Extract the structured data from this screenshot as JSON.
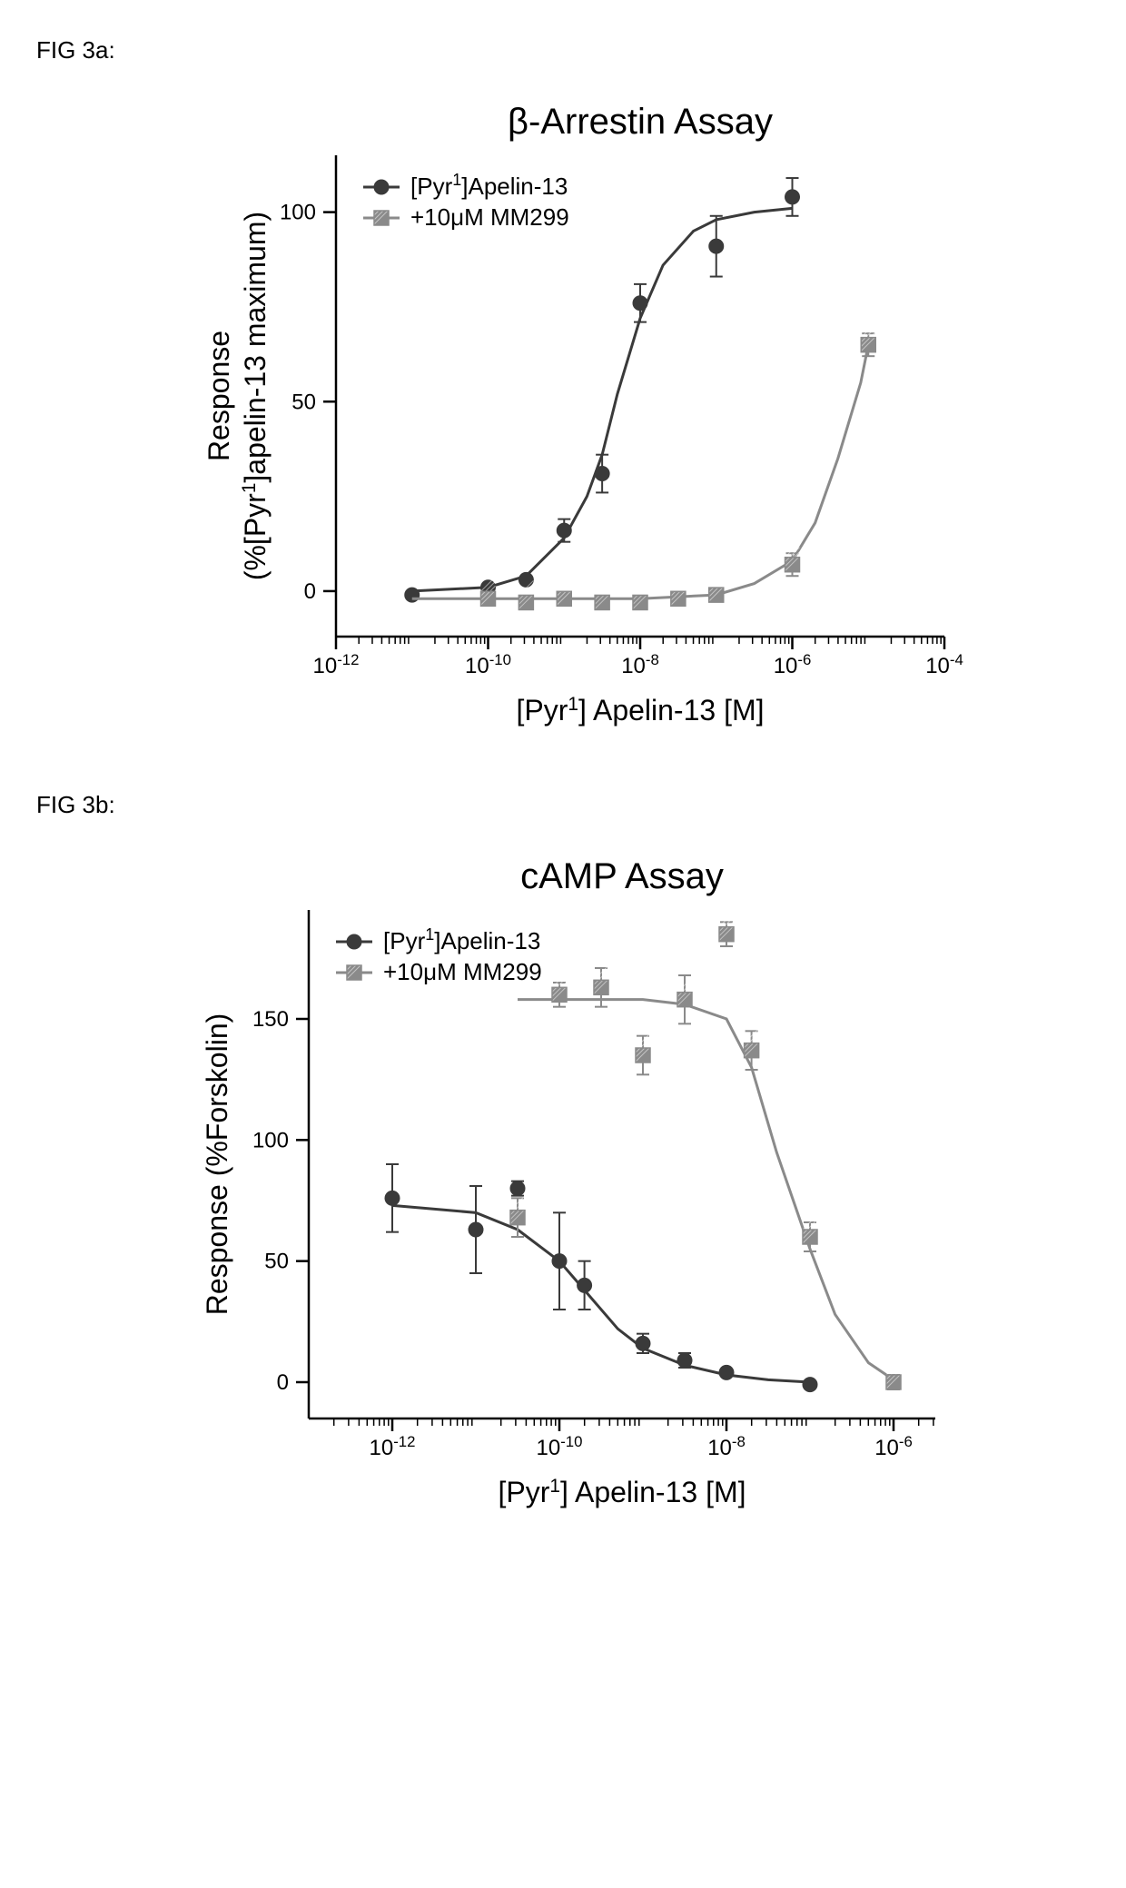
{
  "figA": {
    "label": "FIG 3a:",
    "title": "β-Arrestin  Assay",
    "title_fontsize": 40,
    "xlabel_pre": "[Pyr",
    "xlabel_sup": "1",
    "xlabel_post": "] Apelin-13 [M]",
    "ylabel_line1": "Response",
    "ylabel_line2_pre": "(%[Pyr",
    "ylabel_line2_sup": "1",
    "ylabel_line2_post": "]apelin-13 maximum)",
    "label_fontsize": 32,
    "tick_fontsize": 24,
    "axis_color": "#000000",
    "background_color": "#ffffff",
    "line_width": 3,
    "marker_size": 8,
    "x_log_ticks": [
      -12,
      -10,
      -8,
      -6,
      -4
    ],
    "x_log_tick_labels": [
      "10^-12",
      "10^-10",
      "10^-8",
      "10^-6",
      "10^-4"
    ],
    "xlim_log": [
      -12,
      -4
    ],
    "y_ticks": [
      0,
      50,
      100
    ],
    "ylim": [
      -12,
      115
    ],
    "series": [
      {
        "name": "apelin13",
        "legend_pre": "[Pyr",
        "legend_sup": "1",
        "legend_post": "]Apelin-13",
        "color": "#3a3a3a",
        "marker": "circle",
        "marker_fill": "#3a3a3a",
        "points": [
          {
            "logx": -11,
            "y": -1,
            "err": 0
          },
          {
            "logx": -10,
            "y": 1,
            "err": 0
          },
          {
            "logx": -9.5,
            "y": 3,
            "err": 0
          },
          {
            "logx": -9,
            "y": 16,
            "err": 3
          },
          {
            "logx": -8.5,
            "y": 31,
            "err": 5
          },
          {
            "logx": -8,
            "y": 76,
            "err": 5
          },
          {
            "logx": -7,
            "y": 91,
            "err": 8
          },
          {
            "logx": -6,
            "y": 104,
            "err": 5
          }
        ],
        "curve": [
          {
            "logx": -11,
            "y": 0
          },
          {
            "logx": -10,
            "y": 1
          },
          {
            "logx": -9.5,
            "y": 4
          },
          {
            "logx": -9,
            "y": 14
          },
          {
            "logx": -8.7,
            "y": 25
          },
          {
            "logx": -8.5,
            "y": 36
          },
          {
            "logx": -8.3,
            "y": 52
          },
          {
            "logx": -8,
            "y": 72
          },
          {
            "logx": -7.7,
            "y": 86
          },
          {
            "logx": -7.3,
            "y": 95
          },
          {
            "logx": -7,
            "y": 98
          },
          {
            "logx": -6.5,
            "y": 100
          },
          {
            "logx": -6,
            "y": 101
          }
        ]
      },
      {
        "name": "mm299",
        "legend_pre": "+10μM MM299",
        "legend_sup": "",
        "legend_post": "",
        "color": "#8a8a8a",
        "marker": "square-hatched",
        "marker_fill": "#8a8a8a",
        "points": [
          {
            "logx": -10,
            "y": -2,
            "err": 0
          },
          {
            "logx": -9.5,
            "y": -3,
            "err": 0
          },
          {
            "logx": -9,
            "y": -2,
            "err": 0
          },
          {
            "logx": -8.5,
            "y": -3,
            "err": 0
          },
          {
            "logx": -8,
            "y": -3,
            "err": 0
          },
          {
            "logx": -7.5,
            "y": -2,
            "err": 0
          },
          {
            "logx": -7,
            "y": -1,
            "err": 0
          },
          {
            "logx": -6,
            "y": 7,
            "err": 3
          },
          {
            "logx": -5,
            "y": 65,
            "err": 3
          }
        ],
        "curve": [
          {
            "logx": -11,
            "y": -2
          },
          {
            "logx": -8,
            "y": -2
          },
          {
            "logx": -7,
            "y": -1
          },
          {
            "logx": -6.5,
            "y": 2
          },
          {
            "logx": -6,
            "y": 8
          },
          {
            "logx": -5.7,
            "y": 18
          },
          {
            "logx": -5.4,
            "y": 35
          },
          {
            "logx": -5.1,
            "y": 55
          },
          {
            "logx": -5,
            "y": 65
          }
        ]
      }
    ]
  },
  "figB": {
    "label": "FIG 3b:",
    "title": "cAMP Assay",
    "title_fontsize": 40,
    "xlabel_pre": "[Pyr",
    "xlabel_sup": "1",
    "xlabel_post": "] Apelin-13 [M]",
    "ylabel_line1": "Response (%Forskolin)",
    "label_fontsize": 32,
    "tick_fontsize": 24,
    "axis_color": "#000000",
    "background_color": "#ffffff",
    "line_width": 3,
    "marker_size": 8,
    "x_log_ticks": [
      -12,
      -10,
      -8,
      -6
    ],
    "x_log_tick_labels": [
      "10^-12",
      "10^-10",
      "10^-8",
      "10^-6"
    ],
    "xlim_log": [
      -13,
      -5.5
    ],
    "y_ticks": [
      0,
      50,
      100,
      150
    ],
    "ylim": [
      -15,
      195
    ],
    "series": [
      {
        "name": "apelin13",
        "legend_pre": "[Pyr",
        "legend_sup": "1",
        "legend_post": "]Apelin-13",
        "color": "#3a3a3a",
        "marker": "circle",
        "marker_fill": "#3a3a3a",
        "points": [
          {
            "logx": -12,
            "y": 76,
            "err": 14
          },
          {
            "logx": -11,
            "y": 63,
            "err": 18
          },
          {
            "logx": -10.5,
            "y": 80,
            "err": 3
          },
          {
            "logx": -10,
            "y": 50,
            "err": 20
          },
          {
            "logx": -9.7,
            "y": 40,
            "err": 10
          },
          {
            "logx": -9,
            "y": 16,
            "err": 4
          },
          {
            "logx": -8.5,
            "y": 9,
            "err": 3
          },
          {
            "logx": -8,
            "y": 4,
            "err": 0
          },
          {
            "logx": -7,
            "y": -1,
            "err": 0
          }
        ],
        "curve": [
          {
            "logx": -12,
            "y": 73
          },
          {
            "logx": -11,
            "y": 70
          },
          {
            "logx": -10.5,
            "y": 63
          },
          {
            "logx": -10,
            "y": 50
          },
          {
            "logx": -9.7,
            "y": 38
          },
          {
            "logx": -9.3,
            "y": 22
          },
          {
            "logx": -9,
            "y": 14
          },
          {
            "logx": -8.5,
            "y": 7
          },
          {
            "logx": -8,
            "y": 3
          },
          {
            "logx": -7.5,
            "y": 1
          },
          {
            "logx": -7,
            "y": 0
          }
        ]
      },
      {
        "name": "mm299",
        "legend_pre": "+10μM MM299",
        "legend_sup": "",
        "legend_post": "",
        "color": "#8a8a8a",
        "marker": "square-hatched",
        "marker_fill": "#8a8a8a",
        "points": [
          {
            "logx": -10.5,
            "y": 68,
            "err": 8
          },
          {
            "logx": -10,
            "y": 160,
            "err": 5
          },
          {
            "logx": -9.5,
            "y": 163,
            "err": 8
          },
          {
            "logx": -9,
            "y": 135,
            "err": 8
          },
          {
            "logx": -8.5,
            "y": 158,
            "err": 10
          },
          {
            "logx": -8,
            "y": 185,
            "err": 5
          },
          {
            "logx": -7.7,
            "y": 137,
            "err": 8
          },
          {
            "logx": -7,
            "y": 60,
            "err": 6
          },
          {
            "logx": -6,
            "y": 0,
            "err": 3
          }
        ],
        "curve": [
          {
            "logx": -10.5,
            "y": 158
          },
          {
            "logx": -10,
            "y": 158
          },
          {
            "logx": -9,
            "y": 158
          },
          {
            "logx": -8.5,
            "y": 156
          },
          {
            "logx": -8,
            "y": 150
          },
          {
            "logx": -7.7,
            "y": 130
          },
          {
            "logx": -7.4,
            "y": 95
          },
          {
            "logx": -7,
            "y": 55
          },
          {
            "logx": -6.7,
            "y": 28
          },
          {
            "logx": -6.3,
            "y": 8
          },
          {
            "logx": -6,
            "y": 1
          }
        ]
      }
    ]
  }
}
